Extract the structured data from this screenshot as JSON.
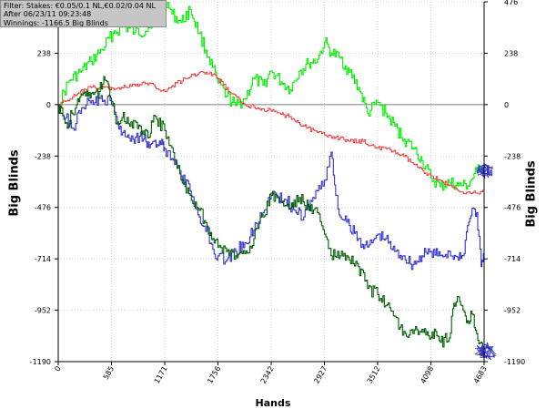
{
  "filter": {
    "line1": "Filter: Stakes: €0.05/0.1 NL,€0.02/0.04 NL",
    "line2": "After 06/23/11 09:23:48",
    "line3": "Winnings: -1166.5 Big Blinds"
  },
  "colors": {
    "background": "#ffffff",
    "gridlines": "#d3d3d3",
    "zero_line": "#7f7f7f",
    "bright_green": "#00ee00",
    "red": "#ee2a2a",
    "blue": "#3333cc",
    "dark_green": "#005f00"
  },
  "chart_data": {
    "type": "line",
    "xlabel": "Hands",
    "ylabel": "Big Blinds",
    "xlim": [
      0,
      4683
    ],
    "ylim": [
      -1190,
      476
    ],
    "grid": true,
    "x_ticks": [
      "0",
      "585",
      "1171",
      "1756",
      "2342",
      "2927",
      "3512",
      "4098",
      "4683"
    ],
    "y_ticks": [
      "476",
      "238",
      "0",
      "-238",
      "-476",
      "-714",
      "-952",
      "-1190"
    ],
    "series": [
      {
        "color": "#00ee00",
        "x": [
          0,
          120,
          240,
          360,
          480,
          600,
          720,
          840,
          960,
          1080,
          1171,
          1250,
          1350,
          1450,
          1550,
          1650,
          1756,
          1850,
          1950,
          2050,
          2150,
          2250,
          2342,
          2450,
          2550,
          2650,
          2750,
          2850,
          2927,
          3000,
          3100,
          3200,
          3300,
          3400,
          3512,
          3600,
          3700,
          3800,
          3900,
          4000,
          4098,
          4200,
          4300,
          4400,
          4500,
          4600,
          4683
        ],
        "y": [
          0,
          110,
          150,
          200,
          255,
          330,
          360,
          335,
          340,
          425,
          490,
          420,
          380,
          440,
          330,
          220,
          100,
          40,
          -5,
          25,
          120,
          90,
          155,
          105,
          70,
          155,
          190,
          210,
          290,
          240,
          215,
          150,
          80,
          -40,
          10,
          -40,
          -100,
          -160,
          -200,
          -260,
          -340,
          -380,
          -360,
          -375,
          -375,
          -310,
          -270
        ]
      },
      {
        "color": "#ee2a2a",
        "x": [
          0,
          100,
          200,
          300,
          400,
          500,
          600,
          800,
          1000,
          1171,
          1300,
          1450,
          1550,
          1700,
          1756,
          1900,
          2050,
          2150,
          2250,
          2342,
          2450,
          2550,
          2700,
          2850,
          2927,
          3050,
          3200,
          3350,
          3512,
          3650,
          3800,
          3950,
          4098,
          4200,
          4300,
          4400,
          4500,
          4600,
          4683
        ],
        "y": [
          0,
          20,
          45,
          70,
          80,
          80,
          75,
          85,
          100,
          60,
          100,
          130,
          150,
          140,
          120,
          50,
          0,
          -10,
          -20,
          -30,
          -45,
          -55,
          -100,
          -130,
          -140,
          -150,
          -170,
          -170,
          -200,
          -210,
          -240,
          -290,
          -330,
          -350,
          -375,
          -400,
          -405,
          -410,
          -405
        ]
      },
      {
        "color": "#3333cc",
        "x": [
          0,
          80,
          160,
          240,
          320,
          400,
          500,
          585,
          650,
          750,
          850,
          950,
          1000,
          1050,
          1100,
          1150,
          1171,
          1250,
          1350,
          1450,
          1550,
          1650,
          1700,
          1756,
          1850,
          1950,
          2050,
          2150,
          2250,
          2342,
          2400,
          2500,
          2600,
          2700,
          2800,
          2927,
          3000,
          3050,
          3100,
          3200,
          3300,
          3400,
          3512,
          3600,
          3700,
          3800,
          3900,
          4000,
          4098,
          4200,
          4300,
          4400,
          4450,
          4500,
          4550,
          4600,
          4650,
          4683
        ],
        "y": [
          0,
          -60,
          -110,
          -40,
          30,
          10,
          20,
          15,
          -90,
          -150,
          -150,
          -140,
          -200,
          -170,
          -190,
          -185,
          -205,
          -250,
          -330,
          -400,
          -520,
          -600,
          -670,
          -700,
          -720,
          -680,
          -640,
          -580,
          -500,
          -410,
          -420,
          -440,
          -490,
          -520,
          -430,
          -350,
          -220,
          -420,
          -520,
          -560,
          -620,
          -660,
          -600,
          -620,
          -680,
          -700,
          -740,
          -700,
          -680,
          -700,
          -680,
          -720,
          -700,
          -560,
          -480,
          -500,
          -750,
          -700
        ]
      },
      {
        "color": "#005f00",
        "x": [
          0,
          50,
          100,
          150,
          200,
          250,
          300,
          350,
          400,
          450,
          500,
          550,
          585,
          650,
          700,
          800,
          900,
          1000,
          1050,
          1171,
          1250,
          1350,
          1450,
          1550,
          1650,
          1700,
          1756,
          1850,
          1950,
          2050,
          2150,
          2250,
          2342,
          2450,
          2550,
          2650,
          2750,
          2850,
          2927,
          3000,
          3100,
          3200,
          3300,
          3400,
          3512,
          3600,
          3700,
          3800,
          3900,
          4000,
          4098,
          4150,
          4200,
          4300,
          4350,
          4400,
          4450,
          4500,
          4550,
          4600,
          4650,
          4683
        ],
        "y": [
          0,
          -50,
          -110,
          -40,
          0,
          50,
          40,
          30,
          55,
          60,
          130,
          95,
          0,
          -80,
          -60,
          -80,
          -100,
          -150,
          -50,
          -120,
          -200,
          -350,
          -420,
          -490,
          -570,
          -620,
          -660,
          -680,
          -700,
          -690,
          -620,
          -520,
          -420,
          -450,
          -480,
          -430,
          -470,
          -500,
          -600,
          -700,
          -700,
          -720,
          -750,
          -850,
          -880,
          -930,
          -980,
          -1050,
          -1060,
          -1040,
          -1080,
          -1050,
          -1100,
          -1080,
          -920,
          -890,
          -950,
          -1000,
          -970,
          -1060,
          -1100,
          -1160
        ]
      }
    ]
  }
}
